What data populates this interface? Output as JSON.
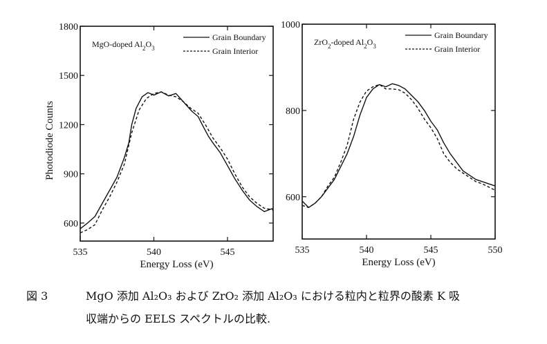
{
  "chart_data": [
    {
      "type": "line",
      "title": "",
      "panel_label": "MgO-doped Al2O3",
      "panel_label_parts": [
        "MgO-doped Al",
        "2",
        "O",
        "3"
      ],
      "xlabel": "Energy Loss (eV)",
      "ylabel": "Photodiode Counts",
      "xlim": [
        535,
        548.1
      ],
      "ylim": [
        490,
        1800
      ],
      "xticks": [
        535,
        540,
        545
      ],
      "yticks": [
        600,
        900,
        1200,
        1500,
        1800
      ],
      "grid": false,
      "legend": "top-right",
      "series": [
        {
          "name": "Grain Boundary",
          "style": "solid",
          "x": [
            535.0,
            535.5,
            536.0,
            536.5,
            537.0,
            537.5,
            538.0,
            538.3,
            538.5,
            538.8,
            539.2,
            539.6,
            540.0,
            540.5,
            541.0,
            541.5,
            541.8,
            542.2,
            542.6,
            543.0,
            543.4,
            543.7,
            544.0,
            544.5,
            545.0,
            545.5,
            546.0,
            546.5,
            547.0,
            547.5,
            548.1
          ],
          "y": [
            565,
            600,
            640,
            720,
            800,
            880,
            1000,
            1090,
            1200,
            1300,
            1370,
            1395,
            1380,
            1400,
            1375,
            1390,
            1360,
            1320,
            1280,
            1250,
            1180,
            1130,
            1090,
            1030,
            950,
            870,
            800,
            740,
            700,
            670,
            690
          ]
        },
        {
          "name": "Grain Interior",
          "style": "dashed",
          "x": [
            535.0,
            535.5,
            536.0,
            536.5,
            537.0,
            537.5,
            538.0,
            538.5,
            539.0,
            539.5,
            540.0,
            540.5,
            541.0,
            541.5,
            542.0,
            542.5,
            543.0,
            543.5,
            544.0,
            544.5,
            545.0,
            545.5,
            546.0,
            546.5,
            547.0,
            547.5,
            548.1
          ],
          "y": [
            540,
            560,
            590,
            680,
            760,
            850,
            960,
            1150,
            1290,
            1360,
            1390,
            1400,
            1380,
            1370,
            1340,
            1300,
            1270,
            1200,
            1120,
            1060,
            990,
            900,
            820,
            760,
            720,
            690,
            680
          ]
        }
      ]
    },
    {
      "type": "line",
      "title": "",
      "panel_label": "ZrO2-doped Al2O3",
      "panel_label_parts": [
        "ZrO",
        "2",
        "-doped Al",
        "2",
        "O",
        "3"
      ],
      "xlabel": "Energy Loss (eV)",
      "ylabel": "",
      "xlim": [
        535,
        550
      ],
      "ylim": [
        502,
        1000
      ],
      "xticks": [
        535,
        540,
        545,
        550
      ],
      "yticks": [
        600,
        800,
        1000
      ],
      "grid": false,
      "legend": "top-right",
      "series": [
        {
          "name": "Grain Boundary",
          "style": "solid",
          "x": [
            535.0,
            535.5,
            536.0,
            536.5,
            537.0,
            537.5,
            538.0,
            538.5,
            539.0,
            539.5,
            540.0,
            540.5,
            541.0,
            541.5,
            542.0,
            542.5,
            543.0,
            543.5,
            544.0,
            544.5,
            545.0,
            545.5,
            546.0,
            546.5,
            547.0,
            547.5,
            548.0,
            548.5,
            549.0,
            550.0
          ],
          "y": [
            590,
            575,
            585,
            600,
            620,
            640,
            670,
            700,
            740,
            790,
            830,
            850,
            860,
            855,
            862,
            858,
            850,
            835,
            820,
            800,
            775,
            755,
            725,
            700,
            680,
            660,
            650,
            640,
            635,
            625
          ]
        },
        {
          "name": "Grain Interior",
          "style": "dashed",
          "x": [
            535.0,
            535.5,
            536.0,
            536.5,
            537.0,
            537.5,
            538.0,
            538.5,
            539.0,
            539.5,
            540.0,
            540.5,
            541.0,
            541.5,
            542.0,
            542.5,
            543.0,
            543.5,
            544.0,
            544.5,
            545.0,
            545.5,
            546.0,
            546.5,
            547.0,
            547.5,
            548.0,
            548.5,
            549.0,
            550.0
          ],
          "y": [
            580,
            575,
            585,
            600,
            625,
            645,
            680,
            720,
            780,
            820,
            845,
            855,
            860,
            850,
            850,
            848,
            840,
            825,
            805,
            780,
            760,
            735,
            700,
            680,
            665,
            655,
            645,
            635,
            630,
            615
          ]
        }
      ]
    }
  ],
  "caption": {
    "figure_number": "図 3",
    "line1": "MgO 添加 Al₂O₃ および ZrO₂ 添加 Al₂O₃ における粒内と粒界の酸素 K 吸",
    "line2": "収端からの EELS スペクトルの比較."
  }
}
